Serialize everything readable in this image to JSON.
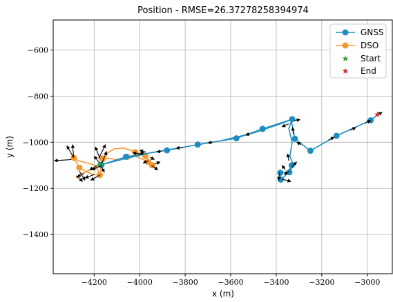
{
  "chart_data": {
    "type": "line",
    "title": "Position - RMSE=26.37278258394974",
    "xlabel": "x (m)",
    "ylabel": "y (m)",
    "xlim": [
      -4380,
      -2890
    ],
    "ylim": [
      -1570,
      -470
    ],
    "xticks": [
      -4200,
      -4000,
      -3800,
      -3600,
      -3400,
      -3200,
      -3000
    ],
    "yticks": [
      -600,
      -800,
      -1000,
      -1200,
      -1400
    ],
    "xtick_labels": [
      "−4200",
      "−4000",
      "−3800",
      "−3600",
      "−3400",
      "−3200",
      "−3000"
    ],
    "ytick_labels": [
      "−600",
      "−800",
      "−1000",
      "−1200",
      "−1400"
    ],
    "grid": true,
    "legend_position": "top-right",
    "colors": {
      "gnss": "#1f8ebf",
      "dso": "#f7972f",
      "start": "#2ca02c",
      "end": "#d62728",
      "arrow": "#000000"
    },
    "series": [
      {
        "name": "GNSS",
        "markers": [
          [
            -2985,
            -905
          ],
          [
            -3135,
            -972
          ],
          [
            -3250,
            -1037
          ],
          [
            -3318,
            -985
          ],
          [
            -3330,
            -900
          ],
          [
            -3460,
            -942
          ],
          [
            -3575,
            -983
          ],
          [
            -3745,
            -1010
          ],
          [
            -3880,
            -1035
          ],
          [
            -4060,
            -1063
          ],
          [
            -4170,
            -1098
          ],
          [
            -3332,
            -1100
          ],
          [
            -3342,
            -1130
          ],
          [
            -3382,
            -1132
          ],
          [
            -3380,
            -1162
          ]
        ],
        "path": [
          [
            -2955,
            -880
          ],
          [
            -2985,
            -905
          ],
          [
            -3135,
            -972
          ],
          [
            -3250,
            -1037
          ],
          [
            -3318,
            -985
          ],
          [
            -3332,
            -915
          ],
          [
            -3330,
            -900
          ],
          [
            -3460,
            -942
          ],
          [
            -3575,
            -983
          ],
          [
            -3745,
            -1010
          ],
          [
            -3880,
            -1035
          ],
          [
            -4060,
            -1063
          ],
          [
            -4170,
            -1098
          ],
          [
            -4170,
            -1098
          ],
          [
            -4100,
            -1080
          ],
          [
            -3950,
            -1045
          ],
          [
            -3800,
            -1020
          ],
          [
            -3650,
            -995
          ],
          [
            -3500,
            -960
          ],
          [
            -3375,
            -918
          ],
          [
            -3330,
            -900
          ],
          [
            -3345,
            -940
          ],
          [
            -3330,
            -1000
          ],
          [
            -3340,
            -1060
          ],
          [
            -3325,
            -1100
          ],
          [
            -3345,
            -1130
          ],
          [
            -3382,
            -1132
          ],
          [
            -3380,
            -1162
          ],
          [
            -3360,
            -1145
          ],
          [
            -3330,
            -1100
          ]
        ]
      },
      {
        "name": "DSO",
        "markers": [
          [
            -4055,
            -1063
          ],
          [
            -4020,
            -1043
          ],
          [
            -3975,
            -1060
          ],
          [
            -3962,
            -1085
          ],
          [
            -3945,
            -1100
          ],
          [
            -4165,
            -1070
          ],
          [
            -4168,
            -1100
          ],
          [
            -4175,
            -1142
          ],
          [
            -4265,
            -1110
          ],
          [
            -4290,
            -1067
          ]
        ],
        "path": [
          [
            -4280,
            -1155
          ],
          [
            -4260,
            -1140
          ],
          [
            -4230,
            -1125
          ],
          [
            -4195,
            -1110
          ],
          [
            -4170,
            -1098
          ],
          [
            -4155,
            -1080
          ],
          [
            -4140,
            -1045
          ],
          [
            -4110,
            -1028
          ],
          [
            -4070,
            -1025
          ],
          [
            -4040,
            -1035
          ],
          [
            -4020,
            -1043
          ],
          [
            -3990,
            -1050
          ],
          [
            -3975,
            -1060
          ],
          [
            -3962,
            -1085
          ],
          [
            -3945,
            -1100
          ],
          [
            -3958,
            -1092
          ],
          [
            -3985,
            -1075
          ],
          [
            -4020,
            -1060
          ],
          [
            -4055,
            -1063
          ],
          [
            -4100,
            -1075
          ],
          [
            -4140,
            -1070
          ],
          [
            -4165,
            -1070
          ],
          [
            -4168,
            -1100
          ],
          [
            -4175,
            -1142
          ],
          [
            -4205,
            -1140
          ],
          [
            -4240,
            -1125
          ],
          [
            -4265,
            -1110
          ],
          [
            -4290,
            -1067
          ],
          [
            -4270,
            -1080
          ],
          [
            -4230,
            -1090
          ],
          [
            -4195,
            -1100
          ],
          [
            -4175,
            -1142
          ]
        ]
      }
    ],
    "start": [
      -4175,
      -1095
    ],
    "end": [
      -2955,
      -880
    ],
    "arrows": [
      [
        -2960,
        -885,
        -2935,
        -870
      ],
      [
        -3010,
        -918,
        -2985,
        -905
      ],
      [
        -3075,
        -948,
        -3050,
        -936
      ],
      [
        -3170,
        -990,
        -3145,
        -978
      ],
      [
        -3290,
        -1010,
        -3310,
        -1000
      ],
      [
        -3325,
        -965,
        -3328,
        -935
      ],
      [
        -3345,
        -920,
        -3375,
        -933
      ],
      [
        -3320,
        -905,
        -3295,
        -902
      ],
      [
        -3515,
        -963,
        -3535,
        -969
      ],
      [
        -3680,
        -1000,
        -3700,
        -1003
      ],
      [
        -3810,
        -1022,
        -3840,
        -1026
      ],
      [
        -3905,
        -1039,
        -3925,
        -1042
      ],
      [
        -4005,
        -1052,
        -3980,
        -1045
      ],
      [
        -3995,
        -1052,
        -4030,
        -1045
      ],
      [
        -3972,
        -1043,
        -4000,
        -1035
      ],
      [
        -3955,
        -1065,
        -3935,
        -1075
      ],
      [
        -3948,
        -1100,
        -3920,
        -1120
      ],
      [
        -3935,
        -1095,
        -3910,
        -1085
      ],
      [
        -3960,
        -1080,
        -3985,
        -1090
      ],
      [
        -3345,
        -1080,
        -3350,
        -1050
      ],
      [
        -3330,
        -1105,
        -3310,
        -1085
      ],
      [
        -3343,
        -1125,
        -3365,
        -1140
      ],
      [
        -3360,
        -1120,
        -3375,
        -1100
      ],
      [
        -3385,
        -1130,
        -3390,
        -1165
      ],
      [
        -3375,
        -1160,
        -3335,
        -1170
      ],
      [
        -4170,
        -1098,
        -4200,
        -1060
      ],
      [
        -4175,
        -1095,
        -4155,
        -1130
      ],
      [
        -4168,
        -1095,
        -4145,
        -1040
      ],
      [
        -4175,
        -1070,
        -4195,
        -1020
      ],
      [
        -4180,
        -1070,
        -4150,
        -1010
      ],
      [
        -4165,
        -1100,
        -4210,
        -1120
      ],
      [
        -4175,
        -1142,
        -4215,
        -1165
      ],
      [
        -4200,
        -1140,
        -4240,
        -1155
      ],
      [
        -4245,
        -1135,
        -4275,
        -1150
      ],
      [
        -4265,
        -1125,
        -4240,
        -1165
      ],
      [
        -4290,
        -1067,
        -4295,
        -1010
      ],
      [
        -4290,
        -1067,
        -4320,
        -1015
      ],
      [
        -4300,
        -1075,
        -4375,
        -1080
      ],
      [
        -4280,
        -1145,
        -4250,
        -1170
      ],
      [
        -4185,
        -1100,
        -4220,
        -1120
      ]
    ]
  },
  "legend": {
    "gnss_label": "GNSS",
    "dso_label": "DSO",
    "start_label": "Start",
    "end_label": "End"
  }
}
